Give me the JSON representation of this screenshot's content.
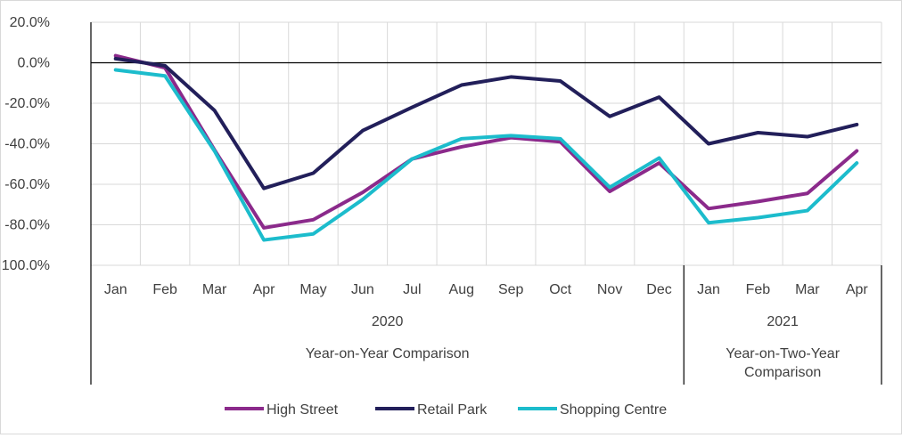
{
  "chart_data": {
    "type": "line",
    "categories": [
      "Jan",
      "Feb",
      "Mar",
      "Apr",
      "May",
      "Jun",
      "Jul",
      "Aug",
      "Sep",
      "Oct",
      "Nov",
      "Dec",
      "Jan",
      "Feb",
      "Mar",
      "Apr"
    ],
    "groups": [
      {
        "year": "2020",
        "label": "Year-on-Year Comparison",
        "count": 12
      },
      {
        "year": "2021",
        "label_lines": [
          "Year-on-Two-Year",
          "Comparison"
        ],
        "count": 4
      }
    ],
    "yticks": [
      "20.0%",
      "0.0%",
      "-20.0%",
      "-40.0%",
      "-60.0%",
      "-80.0%",
      "-100.0%"
    ],
    "ylim": [
      -100,
      20
    ],
    "grid": true,
    "legend_position": "bottom",
    "series": [
      {
        "name": "High Street",
        "color": "#8b2a8b",
        "values": [
          3.5,
          -2.5,
          -43,
          -81.5,
          -77.5,
          -64,
          -47.5,
          -41.5,
          -37,
          -39,
          -63.5,
          -49.5,
          -72,
          -68.5,
          -64.5,
          -43.5
        ]
      },
      {
        "name": "Retail Park",
        "color": "#221f5a",
        "values": [
          2,
          -1.5,
          -23.5,
          -62,
          -54.5,
          -33.5,
          -22,
          -11,
          -7,
          -9,
          -26.5,
          -17,
          -40,
          -34.5,
          -36.5,
          -30.5
        ]
      },
      {
        "name": "Shopping Centre",
        "color": "#1cbccc",
        "values": [
          -3.5,
          -6.5,
          -43.5,
          -87.5,
          -84.5,
          -67.5,
          -47.5,
          -37.5,
          -36,
          -37.5,
          -61.5,
          -47,
          -79,
          -76.5,
          -73,
          -49.5
        ]
      }
    ]
  }
}
